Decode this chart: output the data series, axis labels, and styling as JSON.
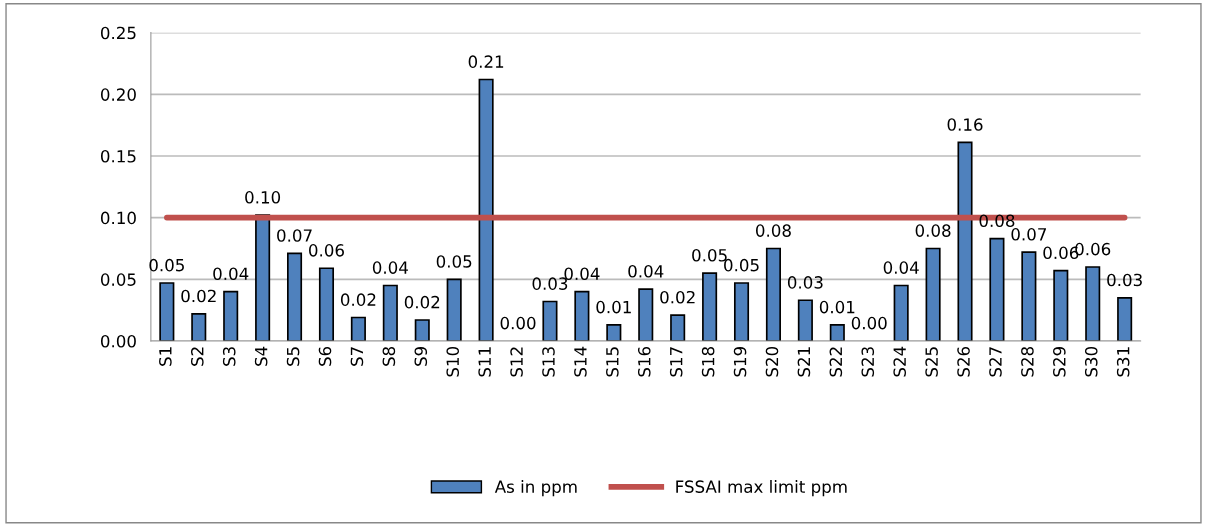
{
  "chart_data": {
    "type": "bar",
    "categories": [
      "S1",
      "S2",
      "S3",
      "S4",
      "S5",
      "S6",
      "S7",
      "S8",
      "S9",
      "S10",
      "S11",
      "S12",
      "S13",
      "S14",
      "S15",
      "S16",
      "S17",
      "S18",
      "S19",
      "S20",
      "S21",
      "S22",
      "S23",
      "S24",
      "S25",
      "S26",
      "S27",
      "S28",
      "S29",
      "S30",
      "S31"
    ],
    "series": [
      {
        "name": "As in ppm",
        "color": "#4f81bd",
        "values": [
          0.047,
          0.022,
          0.04,
          0.102,
          0.071,
          0.059,
          0.019,
          0.045,
          0.017,
          0.05,
          0.212,
          0.0,
          0.032,
          0.04,
          0.013,
          0.042,
          0.021,
          0.055,
          0.047,
          0.075,
          0.033,
          0.013,
          0.0,
          0.045,
          0.075,
          0.161,
          0.083,
          0.072,
          0.057,
          0.06,
          0.035
        ],
        "value_labels": [
          "0.05",
          "0.02",
          "0.04",
          "0.10",
          "0.07",
          "0.06",
          "0.02",
          "0.04",
          "0.02",
          "0.05",
          "0.21",
          "0.00",
          "0.03",
          "0.04",
          "0.01",
          "0.04",
          "0.02",
          "0.05",
          "0.05",
          "0.08",
          "0.03",
          "0.01",
          "0.00",
          "0.04",
          "0.08",
          "0.16",
          "0.08",
          "0.07",
          "0.06",
          "0.06",
          "0.03"
        ]
      },
      {
        "name": "FSSAI max limit ppm",
        "type": "line",
        "color": "#c0504d",
        "values": [
          0.1,
          0.1,
          0.1,
          0.1,
          0.1,
          0.1,
          0.1,
          0.1,
          0.1,
          0.1,
          0.1,
          0.1,
          0.1,
          0.1,
          0.1,
          0.1,
          0.1,
          0.1,
          0.1,
          0.1,
          0.1,
          0.1,
          0.1,
          0.1,
          0.1,
          0.1,
          0.1,
          0.1,
          0.1,
          0.1,
          0.1
        ]
      }
    ],
    "ylim": [
      0,
      0.25
    ],
    "yticks": [
      "0.00",
      "0.05",
      "0.10",
      "0.15",
      "0.20",
      "0.25"
    ],
    "grid": "y",
    "legend": "bottom"
  }
}
